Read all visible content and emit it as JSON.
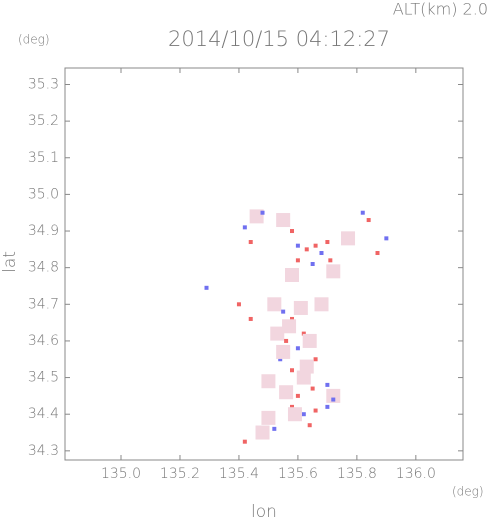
{
  "chart_data": {
    "type": "scatter",
    "header_right": "ALT(km) 2.0",
    "title": "2014/10/15 04:12:27",
    "y_unit": "(deg)",
    "x_unit": "(deg)",
    "xlabel": "lon",
    "ylabel": "lat",
    "xlim": [
      134.81,
      136.16
    ],
    "ylim": [
      34.275,
      35.345
    ],
    "xticks": [
      {
        "value": 135.0,
        "label": "135.0"
      },
      135.2,
      135.4,
      135.6,
      135.8,
      {
        "value": 136.0,
        "label": "136.0"
      }
    ],
    "yticks": [
      34.3,
      34.4,
      34.5,
      34.6,
      34.7,
      34.8,
      34.9,
      {
        "value": 35.0,
        "label": "35.0"
      },
      35.1,
      35.2,
      35.3
    ],
    "x": [
      135.42,
      135.46,
      135.48,
      135.44,
      135.55,
      135.58,
      135.6,
      135.63,
      135.66,
      135.68,
      135.7,
      135.71,
      135.65,
      135.6,
      135.58,
      135.72,
      135.77,
      135.82,
      135.84,
      135.87,
      135.9,
      135.29,
      135.4,
      135.44,
      135.52,
      135.55,
      135.58,
      135.53,
      135.56,
      135.6,
      135.62,
      135.66,
      135.54,
      135.58,
      135.62,
      135.65,
      135.7,
      135.72,
      135.56,
      135.58,
      135.62,
      135.66,
      135.7,
      135.72,
      135.5,
      135.52,
      135.48,
      135.42,
      135.64,
      135.68,
      135.5,
      135.6,
      135.57,
      135.61,
      135.55,
      135.63,
      135.59,
      135.64
    ],
    "values": [
      34.91,
      34.94,
      34.95,
      34.87,
      34.93,
      34.9,
      34.86,
      34.85,
      34.86,
      34.84,
      34.87,
      34.82,
      34.81,
      34.82,
      34.78,
      34.79,
      34.88,
      34.95,
      34.93,
      34.84,
      34.88,
      34.745,
      34.7,
      34.66,
      34.7,
      34.68,
      34.66,
      34.62,
      34.6,
      34.58,
      34.62,
      34.55,
      34.55,
      34.52,
      34.5,
      34.47,
      34.48,
      34.45,
      34.46,
      34.42,
      34.4,
      34.41,
      34.42,
      34.44,
      34.39,
      34.36,
      34.35,
      34.325,
      34.37,
      34.7,
      34.49,
      34.45,
      34.64,
      34.69,
      34.57,
      34.53,
      34.4,
      34.6
    ],
    "colors": [
      "#7070f0",
      "#f2d6df",
      "#7070f0",
      "#f06464",
      "#f2d6df",
      "#f06464",
      "#7070f0",
      "#f06464",
      "#f06464",
      "#7070f0",
      "#f06464",
      "#f06464",
      "#7070f0",
      "#f06464",
      "#f2d6df",
      "#f2d6df",
      "#f2d6df",
      "#7070f0",
      "#f06464",
      "#f06464",
      "#7070f0",
      "#7070f0",
      "#f06464",
      "#f06464",
      "#f2d6df",
      "#7070f0",
      "#f06464",
      "#f2d6df",
      "#f06464",
      "#7070f0",
      "#f06464",
      "#f06464",
      "#7070f0",
      "#f06464",
      "#f2d6df",
      "#f06464",
      "#7070f0",
      "#f2d6df",
      "#f2d6df",
      "#f06464",
      "#7070f0",
      "#f06464",
      "#7070f0",
      "#7070f0",
      "#f2d6df",
      "#7070f0",
      "#f2d6df",
      "#f06464",
      "#f06464",
      "#f2d6df",
      "#f2d6df",
      "#f06464",
      "#f2d6df",
      "#f2d6df",
      "#f2d6df",
      "#f2d6df",
      "#f2d6df",
      "#f2d6df"
    ]
  }
}
